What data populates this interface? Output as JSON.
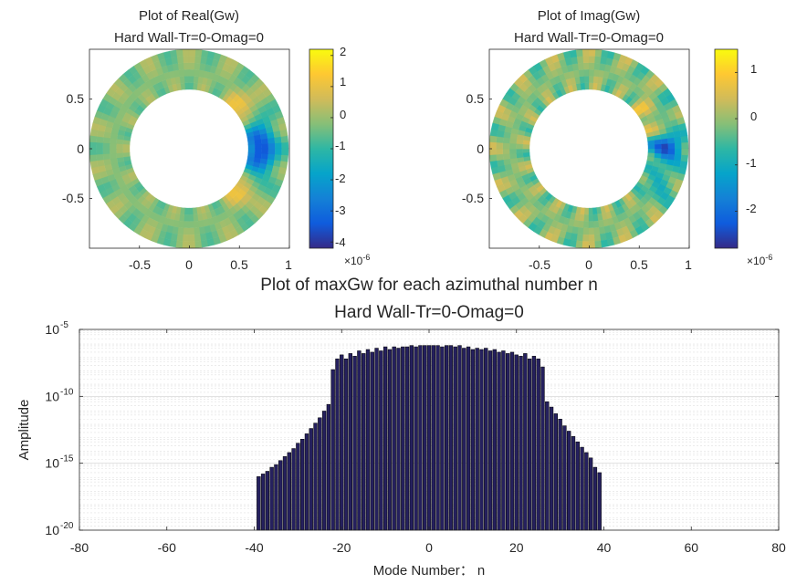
{
  "chart_data": [
    {
      "type": "heatmap",
      "title": "Plot of Real(Gw)",
      "subtitle": "Hard Wall-Tr=0-Omag=0",
      "xticks": [
        "-0.5",
        "0",
        "0.5",
        "1"
      ],
      "yticks": [
        "0.5",
        "0",
        "-0.5"
      ],
      "xlim": [
        -1,
        1
      ],
      "ylim": [
        -1,
        1
      ],
      "colorbar": {
        "ticks": [
          "2",
          "1",
          "0",
          "-1",
          "-2",
          "-3",
          "-4"
        ],
        "range": [
          -4.2,
          2.2
        ],
        "multiplier": "×10^-6"
      },
      "colormap": [
        "#352a87",
        "#0f5cdd",
        "#1481d6",
        "#06a4ca",
        "#2eb7a4",
        "#87bf77",
        "#d1bb59",
        "#fec832",
        "#f9fb0e"
      ]
    },
    {
      "type": "heatmap",
      "title": "Plot of Imag(Gw)",
      "subtitle": "Hard Wall-Tr=0-Omag=0",
      "xticks": [
        "-0.5",
        "0",
        "0.5",
        "1"
      ],
      "yticks": [
        "0.5",
        "0",
        "-0.5"
      ],
      "xlim": [
        -1,
        1
      ],
      "ylim": [
        -1,
        1
      ],
      "colorbar": {
        "ticks": [
          "1",
          "0",
          "-1",
          "-2"
        ],
        "range": [
          -2.8,
          1.5
        ],
        "multiplier": "×10^-6"
      },
      "colormap": [
        "#352a87",
        "#0f5cdd",
        "#1481d6",
        "#06a4ca",
        "#2eb7a4",
        "#87bf77",
        "#d1bb59",
        "#fec832",
        "#f9fb0e"
      ]
    },
    {
      "type": "bar",
      "title": "Plot of maxGw for each azimuthal number n",
      "subtitle": "Hard Wall-Tr=0-Omag=0",
      "xlabel": "Mode Number： n",
      "ylabel": "Amplitude",
      "xlim": [
        -80,
        80
      ],
      "xticks": [
        "-80",
        "-60",
        "-40",
        "-20",
        "0",
        "20",
        "40",
        "60",
        "80"
      ],
      "ylim": [
        1e-20,
        1e-05
      ],
      "yscale": "log",
      "yticks": [
        {
          "base": "10",
          "exp": "-5"
        },
        {
          "base": "10",
          "exp": "-10"
        },
        {
          "base": "10",
          "exp": "-15"
        },
        {
          "base": "10",
          "exp": "-20"
        }
      ],
      "grid": true,
      "bar_color": "#25205e",
      "x": [
        -39,
        -38,
        -37,
        -36,
        -35,
        -34,
        -33,
        -32,
        -31,
        -30,
        -29,
        -28,
        -27,
        -26,
        -25,
        -24,
        -23,
        -22,
        -21,
        -20,
        -19,
        -18,
        -17,
        -16,
        -15,
        -14,
        -13,
        -12,
        -11,
        -10,
        -9,
        -8,
        -7,
        -6,
        -5,
        -4,
        -3,
        -2,
        -1,
        0,
        1,
        2,
        3,
        4,
        5,
        6,
        7,
        8,
        9,
        10,
        11,
        12,
        13,
        14,
        15,
        16,
        17,
        18,
        19,
        20,
        21,
        22,
        23,
        24,
        25,
        26,
        27,
        28,
        29,
        30,
        31,
        32,
        33,
        34,
        35,
        36,
        37,
        38,
        39
      ],
      "log10_values": [
        -16.0,
        -15.8,
        -15.6,
        -15.3,
        -15.1,
        -14.8,
        -14.5,
        -14.2,
        -13.9,
        -13.5,
        -13.2,
        -12.8,
        -12.4,
        -12.0,
        -11.6,
        -11.1,
        -10.6,
        -8.0,
        -7.2,
        -6.9,
        -7.2,
        -6.8,
        -7.0,
        -6.6,
        -6.8,
        -6.5,
        -6.7,
        -6.4,
        -6.6,
        -6.3,
        -6.5,
        -6.3,
        -6.4,
        -6.3,
        -6.3,
        -6.2,
        -6.3,
        -6.2,
        -6.2,
        -6.2,
        -6.2,
        -6.2,
        -6.3,
        -6.2,
        -6.2,
        -6.3,
        -6.2,
        -6.4,
        -6.3,
        -6.5,
        -6.4,
        -6.5,
        -6.4,
        -6.6,
        -6.5,
        -6.7,
        -6.6,
        -6.8,
        -6.7,
        -6.9,
        -7.0,
        -6.8,
        -7.2,
        -7.0,
        -7.2,
        -7.8,
        -10.4,
        -10.8,
        -11.3,
        -11.7,
        -12.2,
        -12.6,
        -13.0,
        -13.4,
        -13.8,
        -14.2,
        -14.6,
        -15.3,
        -15.7
      ]
    }
  ]
}
